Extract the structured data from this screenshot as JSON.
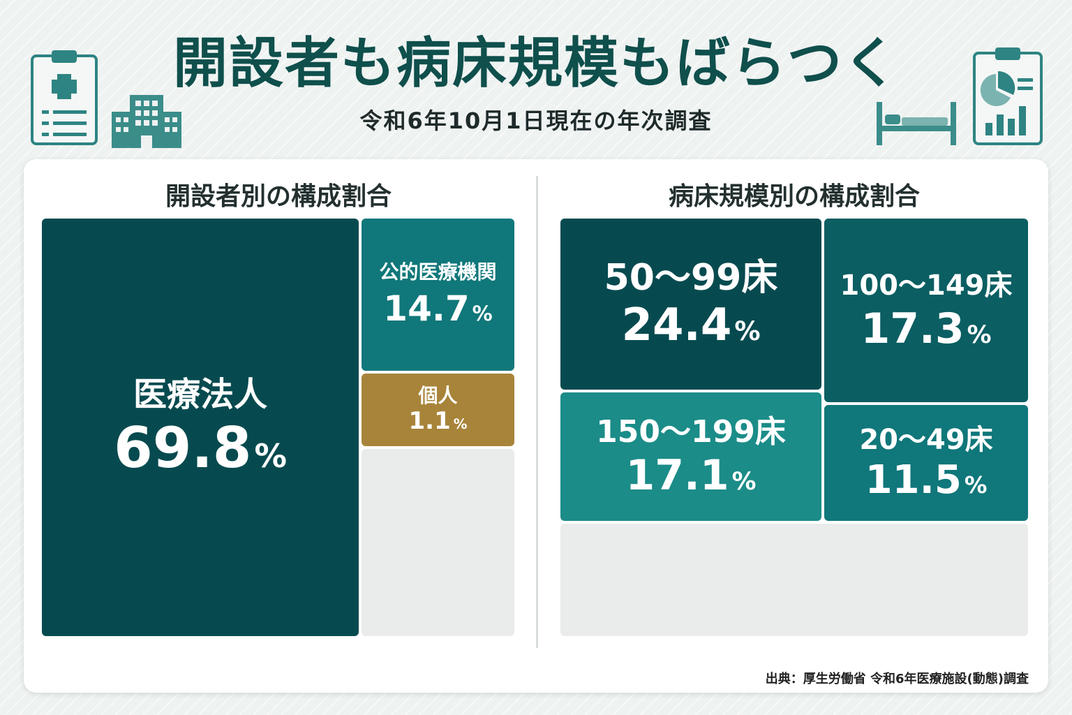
{
  "header": {
    "title": "開設者も病床規模もばらつく",
    "subtitle": "令和6年10月1日現在の年次調査"
  },
  "colors": {
    "darkest": "#064a4f",
    "dark": "#0b5e62",
    "mid": "#10777a",
    "light": "#1b8c88",
    "gold": "#a8843a",
    "empty": "#e9eceb",
    "title": "#0f4f4c"
  },
  "icons": [
    "clipboard-medical-icon",
    "hospital-building-icon",
    "bed-icon",
    "clipboard-chart-icon"
  ],
  "chart_data": [
    {
      "type": "treemap",
      "title": "開設者別の構成割合",
      "unit": "%",
      "items": [
        {
          "label": "医療法人",
          "value": 69.8,
          "value_text": "69.8",
          "color": "#064a4f"
        },
        {
          "label": "公的医療機関",
          "value": 14.7,
          "value_text": "14.7",
          "color": "#10777a"
        },
        {
          "label": "個人",
          "value": 1.1,
          "value_text": "1.1",
          "color": "#a8843a"
        }
      ]
    },
    {
      "type": "treemap",
      "title": "病床規模別の構成割合",
      "unit": "%",
      "items": [
        {
          "label": "50～99床",
          "value": 24.4,
          "value_text": "24.4",
          "color": "#064a4f"
        },
        {
          "label": "100～149床",
          "value": 17.3,
          "value_text": "17.3",
          "color": "#0b5e62"
        },
        {
          "label": "150～199床",
          "value": 17.1,
          "value_text": "17.1",
          "color": "#1b8c88"
        },
        {
          "label": "20～49床",
          "value": 11.5,
          "value_text": "11.5",
          "color": "#10777a"
        }
      ]
    }
  ],
  "footer": {
    "source": "出典：厚生労働省 令和6年医療施設(動態)調査"
  }
}
